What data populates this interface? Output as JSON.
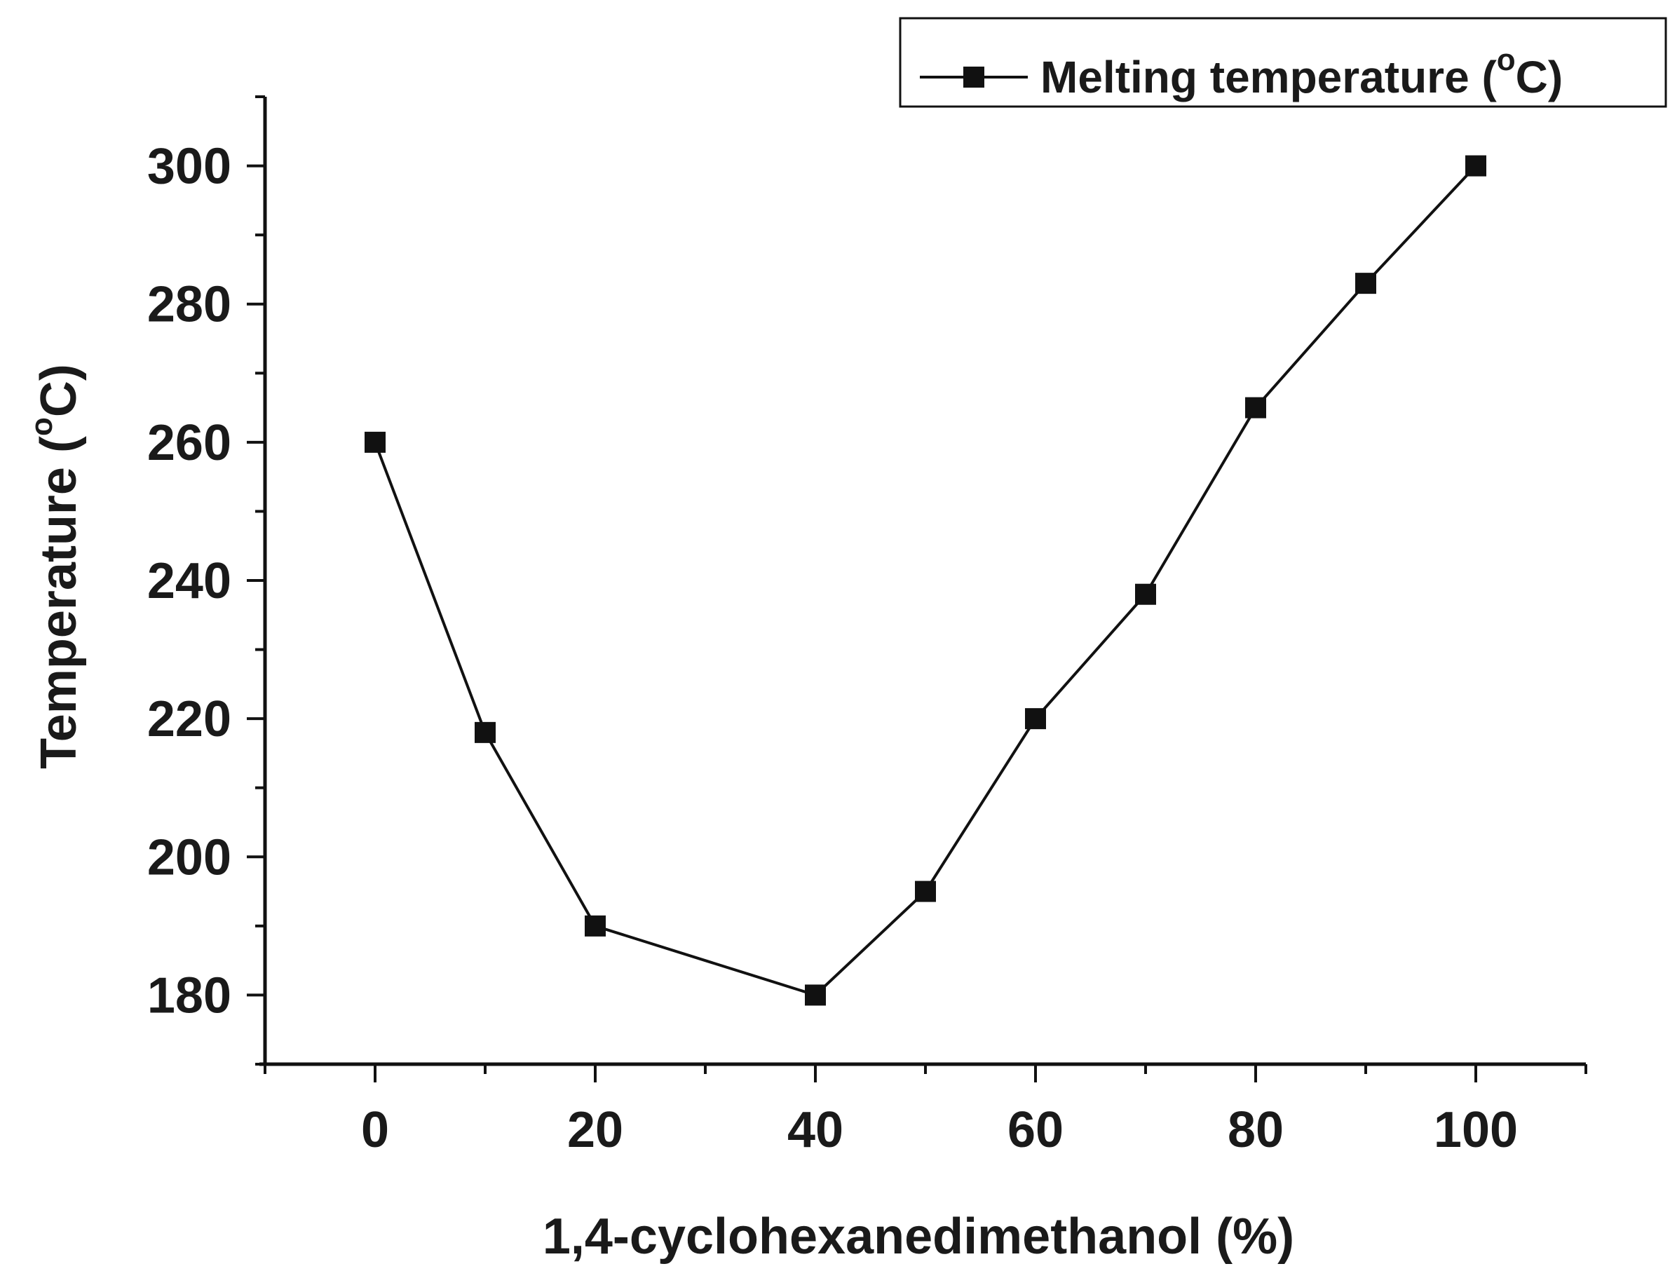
{
  "chart_data": {
    "type": "line",
    "xlabel": "1,4-cyclohexanedimethanol (%)",
    "ylabel": {
      "main": "Temperature (",
      "sup": "o",
      "tail": "C)"
    },
    "xlim": [
      -10,
      110
    ],
    "ylim": [
      170,
      310
    ],
    "xticks": [
      0,
      20,
      40,
      60,
      80,
      100
    ],
    "yticks": [
      180,
      200,
      220,
      240,
      260,
      280,
      300
    ],
    "grid": false,
    "legend_position": "top-right",
    "series": [
      {
        "name": "Melting temperature (oC)",
        "legend_label": {
          "main": "Melting temperature (",
          "sup": "o",
          "tail": "C)"
        },
        "color": "#111111",
        "marker": "square",
        "x": [
          0,
          10,
          20,
          40,
          50,
          60,
          70,
          80,
          90,
          100
        ],
        "y": [
          260,
          218,
          190,
          180,
          195,
          220,
          238,
          265,
          283,
          300
        ]
      }
    ]
  }
}
